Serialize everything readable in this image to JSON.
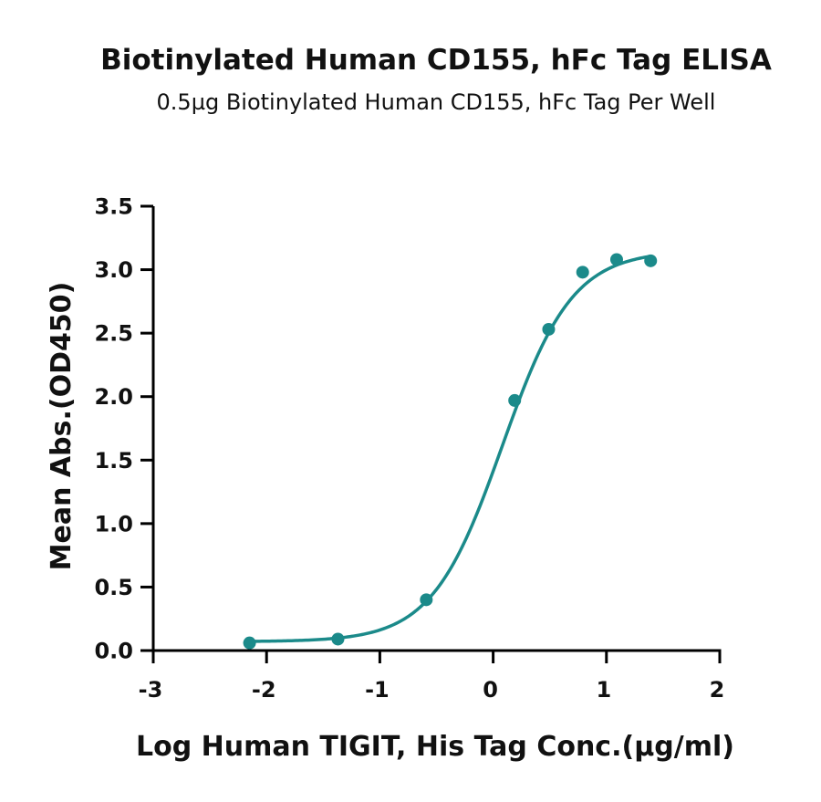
{
  "chart_data": {
    "type": "scatter",
    "title": "Biotinylated Human CD155, hFc Tag ELISA",
    "subtitle": "0.5µg Biotinylated Human CD155, hFc Tag Per Well",
    "xlabel": "Log Human TIGIT, His Tag Conc.(µg/ml)",
    "ylabel": "Mean Abs.(OD450)",
    "xlim": [
      -3,
      2
    ],
    "ylim": [
      0,
      3.5
    ],
    "x_ticks": [
      -3,
      -2,
      -1,
      0,
      1,
      2
    ],
    "y_ticks": [
      0.0,
      0.5,
      1.0,
      1.5,
      2.0,
      2.5,
      3.0,
      3.5
    ],
    "x_tick_labels": [
      "-3",
      "-2",
      "-1",
      "0",
      "1",
      "2"
    ],
    "y_tick_labels": [
      "0.0",
      "0.5",
      "1.0",
      "1.5",
      "2.0",
      "2.5",
      "3.0",
      "3.5"
    ],
    "grid": false,
    "legend": "none",
    "color": "#1b8a8a",
    "series": [
      {
        "x": [
          -2.15,
          -1.37,
          -0.59,
          0.19,
          0.49,
          0.79,
          1.09,
          1.39
        ],
        "y": [
          0.06,
          0.09,
          0.4,
          1.97,
          2.53,
          2.98,
          3.08,
          3.07
        ]
      }
    ],
    "fit_curve": {
      "model": "4PL",
      "bottom": 0.07,
      "top": 3.15,
      "ec50_log": 0.08,
      "hill_slope": 1.4,
      "x_range": [
        -2.15,
        1.39
      ]
    }
  }
}
